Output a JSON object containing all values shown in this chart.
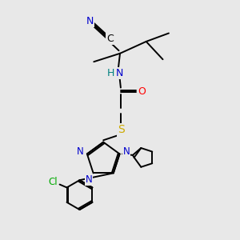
{
  "bg_color": "#e8e8e8",
  "atom_colors": {
    "N": "#0000cc",
    "O": "#ff0000",
    "S": "#ccaa00",
    "Cl": "#00aa00",
    "H": "#008080"
  }
}
